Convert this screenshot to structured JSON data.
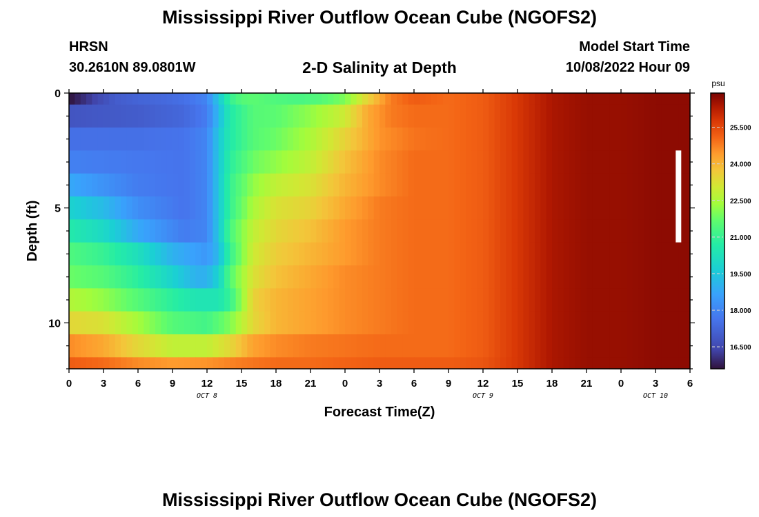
{
  "page": {
    "title_top": "Mississippi River Outflow Ocean Cube (NGOFS2)",
    "title_bottom": "Mississippi River Outflow Ocean Cube (NGOFS2)",
    "station_name": "HRSN",
    "station_coords": "30.2610N  89.0801W",
    "plot_subtitle": "2-D Salinity at Depth",
    "model_start_label": "Model Start Time",
    "model_start_value": "10/08/2022 Hour 09"
  },
  "chart_data": {
    "type": "heatmap",
    "title": "2-D Salinity at Depth",
    "xlabel": "Forecast Time(Z)",
    "ylabel": "Depth (ft)",
    "x_unit": "hours since 10/08 00Z",
    "xlim": [
      0,
      54
    ],
    "ylim": [
      0,
      12
    ],
    "x_ticks": [
      {
        "hour": 0,
        "label": "0"
      },
      {
        "hour": 3,
        "label": "3"
      },
      {
        "hour": 6,
        "label": "6"
      },
      {
        "hour": 9,
        "label": "9"
      },
      {
        "hour": 12,
        "label": "12"
      },
      {
        "hour": 15,
        "label": "15"
      },
      {
        "hour": 18,
        "label": "18"
      },
      {
        "hour": 21,
        "label": "21"
      },
      {
        "hour": 24,
        "label": "0"
      },
      {
        "hour": 27,
        "label": "3"
      },
      {
        "hour": 30,
        "label": "6"
      },
      {
        "hour": 33,
        "label": "9"
      },
      {
        "hour": 36,
        "label": "12"
      },
      {
        "hour": 39,
        "label": "15"
      },
      {
        "hour": 42,
        "label": "18"
      },
      {
        "hour": 45,
        "label": "21"
      },
      {
        "hour": 48,
        "label": "0"
      },
      {
        "hour": 51,
        "label": "3"
      },
      {
        "hour": 54,
        "label": "6"
      }
    ],
    "date_labels": [
      {
        "hour": 12,
        "label": "OCT 8"
      },
      {
        "hour": 36,
        "label": "OCT 9"
      },
      {
        "hour": 51,
        "label": "OCT 10"
      }
    ],
    "y_ticks": [
      {
        "depth": 0,
        "label": "0"
      },
      {
        "depth": 5,
        "label": "5"
      },
      {
        "depth": 10,
        "label": "10"
      }
    ],
    "colorbar": {
      "unit": "psu",
      "range": [
        15.6,
        26.9
      ],
      "ticks": [
        {
          "value": 16.5,
          "label": "16.500"
        },
        {
          "value": 18.0,
          "label": "18.000"
        },
        {
          "value": 19.5,
          "label": "19.500"
        },
        {
          "value": 21.0,
          "label": "21.000"
        },
        {
          "value": 22.5,
          "label": "22.500"
        },
        {
          "value": 24.0,
          "label": "24.000"
        },
        {
          "value": 25.5,
          "label": "25.500"
        }
      ]
    },
    "now_marker": {
      "hour": 53,
      "depth_top": 2.5,
      "depth_bottom": 6.5
    },
    "salinity_by_layer": [
      {
        "depth_top": 0,
        "depth_bottom": 0.5,
        "hours": [
          0,
          2,
          4,
          6,
          8,
          10,
          12,
          13,
          14,
          15,
          16,
          18,
          20,
          22,
          24,
          26,
          28,
          30,
          33,
          36,
          39,
          42,
          45,
          48,
          51,
          54
        ],
        "psu": [
          15.6,
          16.3,
          17.0,
          17.2,
          17.3,
          17.5,
          18.0,
          19.5,
          21.0,
          21.5,
          21.6,
          21.4,
          21.3,
          21.5,
          22.0,
          23.5,
          24.8,
          25.2,
          25.0,
          25.2,
          25.8,
          26.4,
          26.6,
          26.6,
          26.7,
          26.7
        ]
      },
      {
        "depth_top": 0.5,
        "depth_bottom": 1.5,
        "hours": [
          0,
          6,
          10,
          12,
          13,
          14,
          16,
          18,
          21,
          24,
          26,
          28,
          30,
          33,
          36,
          39,
          42,
          45,
          48,
          51,
          54
        ],
        "psu": [
          16.8,
          17.0,
          17.3,
          17.8,
          19.2,
          20.6,
          21.5,
          21.6,
          22.2,
          23.0,
          24.2,
          24.8,
          25.0,
          25.0,
          25.2,
          25.8,
          26.4,
          26.6,
          26.6,
          26.7,
          26.7
        ]
      },
      {
        "depth_top": 1.5,
        "depth_bottom": 2.5,
        "hours": [
          0,
          6,
          10,
          12,
          13,
          14,
          16,
          18,
          21,
          24,
          27,
          30,
          33,
          36,
          39,
          42,
          45,
          48,
          51,
          54
        ],
        "psu": [
          17.5,
          17.5,
          17.6,
          18.0,
          19.5,
          20.6,
          21.5,
          21.8,
          22.5,
          23.5,
          24.5,
          24.9,
          25.0,
          25.2,
          25.8,
          26.4,
          26.6,
          26.6,
          26.7,
          26.7
        ]
      },
      {
        "depth_top": 2.5,
        "depth_bottom": 3.5,
        "hours": [
          0,
          6,
          10,
          12,
          13,
          14,
          16,
          18,
          21,
          24,
          27,
          30,
          33,
          36,
          39,
          42,
          45,
          48,
          51,
          54
        ],
        "psu": [
          17.9,
          17.7,
          17.6,
          18.0,
          19.5,
          20.8,
          21.8,
          22.2,
          22.8,
          23.8,
          24.6,
          25.0,
          25.0,
          25.2,
          25.8,
          26.4,
          26.6,
          26.6,
          26.7,
          26.7
        ]
      },
      {
        "depth_top": 3.5,
        "depth_bottom": 4.5,
        "hours": [
          0,
          3,
          6,
          10,
          12,
          13,
          14,
          16,
          18,
          21,
          24,
          27,
          30,
          33,
          36,
          39,
          42,
          45,
          48,
          51,
          54
        ],
        "psu": [
          18.8,
          18.3,
          17.8,
          17.6,
          18.0,
          19.5,
          21.0,
          22.2,
          22.8,
          23.2,
          24.0,
          24.6,
          25.0,
          25.0,
          25.2,
          25.8,
          26.4,
          26.6,
          26.6,
          26.7,
          26.7
        ]
      },
      {
        "depth_top": 4.5,
        "depth_bottom": 5.5,
        "hours": [
          0,
          3,
          6,
          10,
          12,
          13,
          14,
          16,
          18,
          21,
          24,
          27,
          30,
          33,
          36,
          39,
          42,
          45,
          48,
          51,
          54
        ],
        "psu": [
          19.8,
          19.2,
          18.2,
          17.6,
          18.0,
          19.5,
          21.0,
          22.5,
          23.2,
          23.5,
          24.2,
          24.8,
          25.0,
          25.0,
          25.2,
          25.8,
          26.4,
          26.6,
          26.6,
          26.7,
          26.7
        ]
      },
      {
        "depth_top": 5.5,
        "depth_bottom": 6.5,
        "hours": [
          0,
          3,
          6,
          10,
          12,
          13,
          14,
          16,
          18,
          21,
          24,
          27,
          30,
          33,
          36,
          39,
          42,
          45,
          48,
          51,
          54
        ],
        "psu": [
          20.6,
          20.0,
          18.8,
          17.8,
          18.0,
          19.5,
          21.3,
          22.8,
          23.4,
          23.8,
          24.4,
          24.8,
          25.0,
          25.0,
          25.2,
          25.8,
          26.4,
          26.6,
          26.6,
          26.7,
          26.7
        ]
      },
      {
        "depth_top": 6.5,
        "depth_bottom": 7.5,
        "hours": [
          0,
          3,
          6,
          9,
          12,
          13,
          14,
          16,
          18,
          21,
          24,
          27,
          30,
          33,
          36,
          39,
          42,
          45,
          48,
          51,
          54
        ],
        "psu": [
          21.4,
          21.0,
          20.2,
          19.0,
          18.4,
          19.2,
          21.0,
          23.0,
          23.6,
          24.0,
          24.4,
          24.8,
          25.0,
          25.0,
          25.2,
          25.8,
          26.4,
          26.6,
          26.6,
          26.7,
          26.7
        ]
      },
      {
        "depth_top": 7.5,
        "depth_bottom": 8.5,
        "hours": [
          0,
          3,
          6,
          9,
          11,
          12,
          13,
          14,
          16,
          18,
          21,
          24,
          27,
          30,
          33,
          36,
          39,
          42,
          45,
          48,
          51,
          54
        ],
        "psu": [
          21.8,
          21.5,
          20.8,
          19.8,
          19.0,
          19.0,
          19.8,
          21.5,
          23.2,
          23.8,
          24.2,
          24.6,
          24.8,
          25.0,
          25.0,
          25.2,
          25.8,
          26.4,
          26.6,
          26.6,
          26.7,
          26.7
        ]
      },
      {
        "depth_top": 8.5,
        "depth_bottom": 9.5,
        "hours": [
          0,
          3,
          6,
          9,
          11,
          13,
          14,
          15,
          16,
          18,
          21,
          24,
          27,
          30,
          33,
          36,
          39,
          42,
          45,
          48,
          51,
          54
        ],
        "psu": [
          22.6,
          22.2,
          21.5,
          20.8,
          20.4,
          20.4,
          21.0,
          22.2,
          23.5,
          24.0,
          24.3,
          24.6,
          24.8,
          25.0,
          25.0,
          25.2,
          25.8,
          26.4,
          26.6,
          26.6,
          26.7,
          26.7
        ]
      },
      {
        "depth_top": 9.5,
        "depth_bottom": 10.5,
        "hours": [
          0,
          3,
          6,
          9,
          12,
          14,
          16,
          18,
          21,
          24,
          27,
          30,
          33,
          36,
          39,
          42,
          45,
          48,
          51,
          54
        ],
        "psu": [
          23.4,
          23.2,
          22.4,
          21.5,
          21.2,
          22.0,
          23.4,
          24.0,
          24.3,
          24.6,
          24.8,
          25.0,
          25.0,
          25.2,
          25.8,
          26.4,
          26.6,
          26.6,
          26.7,
          26.7
        ]
      },
      {
        "depth_top": 10.5,
        "depth_bottom": 11.5,
        "hours": [
          0,
          3,
          6,
          9,
          12,
          14,
          16,
          18,
          21,
          24,
          27,
          30,
          33,
          36,
          39,
          42,
          45,
          48,
          51,
          54
        ],
        "psu": [
          24.6,
          24.2,
          23.4,
          22.8,
          22.8,
          23.4,
          24.3,
          24.6,
          24.8,
          24.9,
          25.0,
          25.0,
          25.0,
          25.2,
          25.8,
          26.4,
          26.6,
          26.6,
          26.7,
          26.7
        ]
      },
      {
        "depth_top": 11.5,
        "depth_bottom": 12,
        "hours": [
          0,
          3,
          6,
          9,
          12,
          15,
          18,
          21,
          24,
          27,
          30,
          33,
          36,
          39,
          42,
          45,
          48,
          51,
          54
        ],
        "psu": [
          25.2,
          25.0,
          24.6,
          24.4,
          24.5,
          24.8,
          25.0,
          25.0,
          25.1,
          25.2,
          25.2,
          25.2,
          25.3,
          25.8,
          26.4,
          26.6,
          26.6,
          26.7,
          26.7
        ]
      }
    ]
  }
}
